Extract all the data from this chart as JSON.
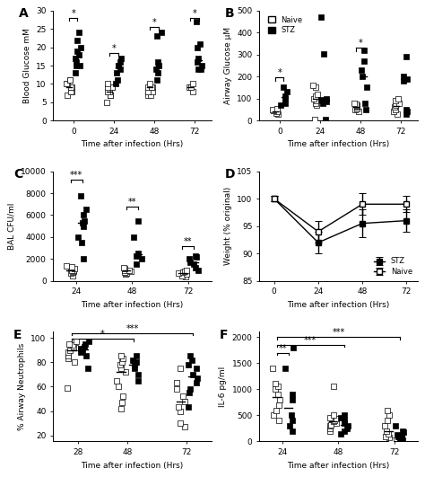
{
  "panel_A": {
    "title": "A",
    "ylabel": "Blood Glucose mM",
    "xlabel": "Time after infection (Hrs)",
    "xticks": [
      0,
      24,
      48,
      72
    ],
    "ylim": [
      0,
      30
    ],
    "naive_data": {
      "0": [
        7,
        8,
        8,
        9,
        9,
        10,
        10,
        11,
        11
      ],
      "24": [
        5,
        7,
        7,
        8,
        8,
        9,
        9,
        9,
        10
      ],
      "48": [
        7,
        7,
        8,
        8,
        9,
        9,
        9,
        9,
        10
      ],
      "72": [
        8,
        9,
        9,
        9,
        10
      ]
    },
    "stz_data": {
      "0": [
        13,
        15,
        15,
        16,
        17,
        18,
        19,
        20,
        22,
        24
      ],
      "24": [
        10,
        11,
        13,
        14,
        15,
        15,
        16,
        17
      ],
      "48": [
        11,
        13,
        14,
        15,
        16,
        23,
        24
      ],
      "72": [
        14,
        14,
        15,
        16,
        17,
        20,
        21,
        27
      ]
    }
  },
  "panel_B": {
    "title": "B",
    "ylabel": "Airway Glucose μM",
    "xlabel": "Time after infection (Hrs)",
    "xticks": [
      0,
      24,
      48,
      72
    ],
    "ylim": [
      0,
      500
    ],
    "naive_data": {
      "0": [
        30,
        35,
        40,
        45,
        50,
        55
      ],
      "24": [
        5,
        70,
        80,
        90,
        100,
        110,
        120,
        150,
        160
      ],
      "48": [
        40,
        50,
        55,
        60,
        65,
        70,
        75,
        80
      ],
      "72": [
        30,
        40,
        50,
        60,
        70,
        80,
        90,
        100
      ]
    },
    "stz_data": {
      "0": [
        70,
        80,
        100,
        110,
        130,
        150
      ],
      "24": [
        5,
        80,
        85,
        90,
        95,
        100,
        305,
        470
      ],
      "48": [
        50,
        80,
        150,
        200,
        230,
        270,
        320
      ],
      "72": [
        30,
        40,
        50,
        180,
        190,
        200,
        290
      ]
    }
  },
  "panel_C": {
    "title": "C",
    "ylabel": "BAL CFU/ml",
    "xlabel": "Time after infection (Hrs)",
    "xticks": [
      24,
      48,
      72
    ],
    "ylim": [
      0,
      10000
    ],
    "naive_data": {
      "24": [
        500,
        700,
        800,
        900,
        1000,
        1000,
        1100,
        1200,
        1300,
        1400
      ],
      "48": [
        600,
        700,
        800,
        900,
        1000,
        1000,
        1100,
        1200
      ],
      "72": [
        400,
        500,
        600,
        700,
        800,
        900,
        1000
      ]
    },
    "stz_data": {
      "24": [
        2000,
        3500,
        4000,
        5000,
        5300,
        5500,
        6000,
        6500,
        7800
      ],
      "48": [
        1500,
        2000,
        2300,
        2500,
        4000,
        5500
      ],
      "72": [
        1000,
        1200,
        1500,
        1700,
        2000,
        2200,
        2300
      ]
    }
  },
  "panel_D": {
    "title": "D",
    "ylabel": "Weight (% original)",
    "xlabel": "Time after infection (Hrs)",
    "xticks": [
      0,
      24,
      48,
      72
    ],
    "ylim": [
      85,
      105
    ],
    "stz_mean": [
      100,
      92,
      95.5,
      96
    ],
    "stz_err": [
      0.5,
      2.0,
      2.5,
      2.0
    ],
    "naive_mean": [
      100,
      94,
      99,
      99
    ],
    "naive_err": [
      0.5,
      2.0,
      2.0,
      1.5
    ]
  },
  "panel_E": {
    "title": "E",
    "ylabel": "% Airway Neutrophils",
    "xlabel": "Time after infection (Hrs)",
    "xticks": [
      28,
      48,
      72
    ],
    "ylim": [
      15,
      105
    ],
    "naive_data": {
      "28": [
        59,
        80,
        83,
        85,
        88,
        90,
        92,
        93,
        94,
        95,
        97
      ],
      "48": [
        42,
        47,
        52,
        60,
        65,
        72,
        75,
        78,
        80,
        83,
        85
      ],
      "72": [
        27,
        30,
        40,
        43,
        48,
        52,
        58,
        63,
        75
      ]
    },
    "stz_data": {
      "28": [
        75,
        85,
        88,
        90,
        91,
        93,
        95,
        97
      ],
      "48": [
        65,
        70,
        75,
        78,
        80,
        82,
        85
      ],
      "72": [
        43,
        55,
        58,
        63,
        67,
        70,
        75,
        78,
        82,
        85
      ]
    }
  },
  "panel_F": {
    "title": "F",
    "ylabel": "IL-6 pg/ml",
    "xlabel": "Time after infection (Hrs)",
    "xticks": [
      24,
      48,
      72
    ],
    "ylim": [
      0,
      2100
    ],
    "naive_data": {
      "24": [
        400,
        500,
        600,
        700,
        800,
        900,
        1000,
        1050,
        1100,
        1400
      ],
      "48": [
        200,
        250,
        300,
        320,
        350,
        380,
        400,
        430,
        460,
        500,
        1050
      ],
      "72": [
        30,
        80,
        100,
        150,
        200,
        300,
        400,
        500,
        600
      ]
    },
    "stz_data": {
      "24": [
        200,
        300,
        400,
        500,
        800,
        900,
        1400,
        1800
      ],
      "48": [
        150,
        200,
        250,
        300,
        350,
        400,
        450,
        500
      ],
      "72": [
        30,
        50,
        80,
        100,
        130,
        180,
        200,
        300
      ]
    }
  },
  "colors": {
    "naive_face": "white",
    "naive_edge": "black",
    "stz_face": "black",
    "stz_edge": "black"
  }
}
